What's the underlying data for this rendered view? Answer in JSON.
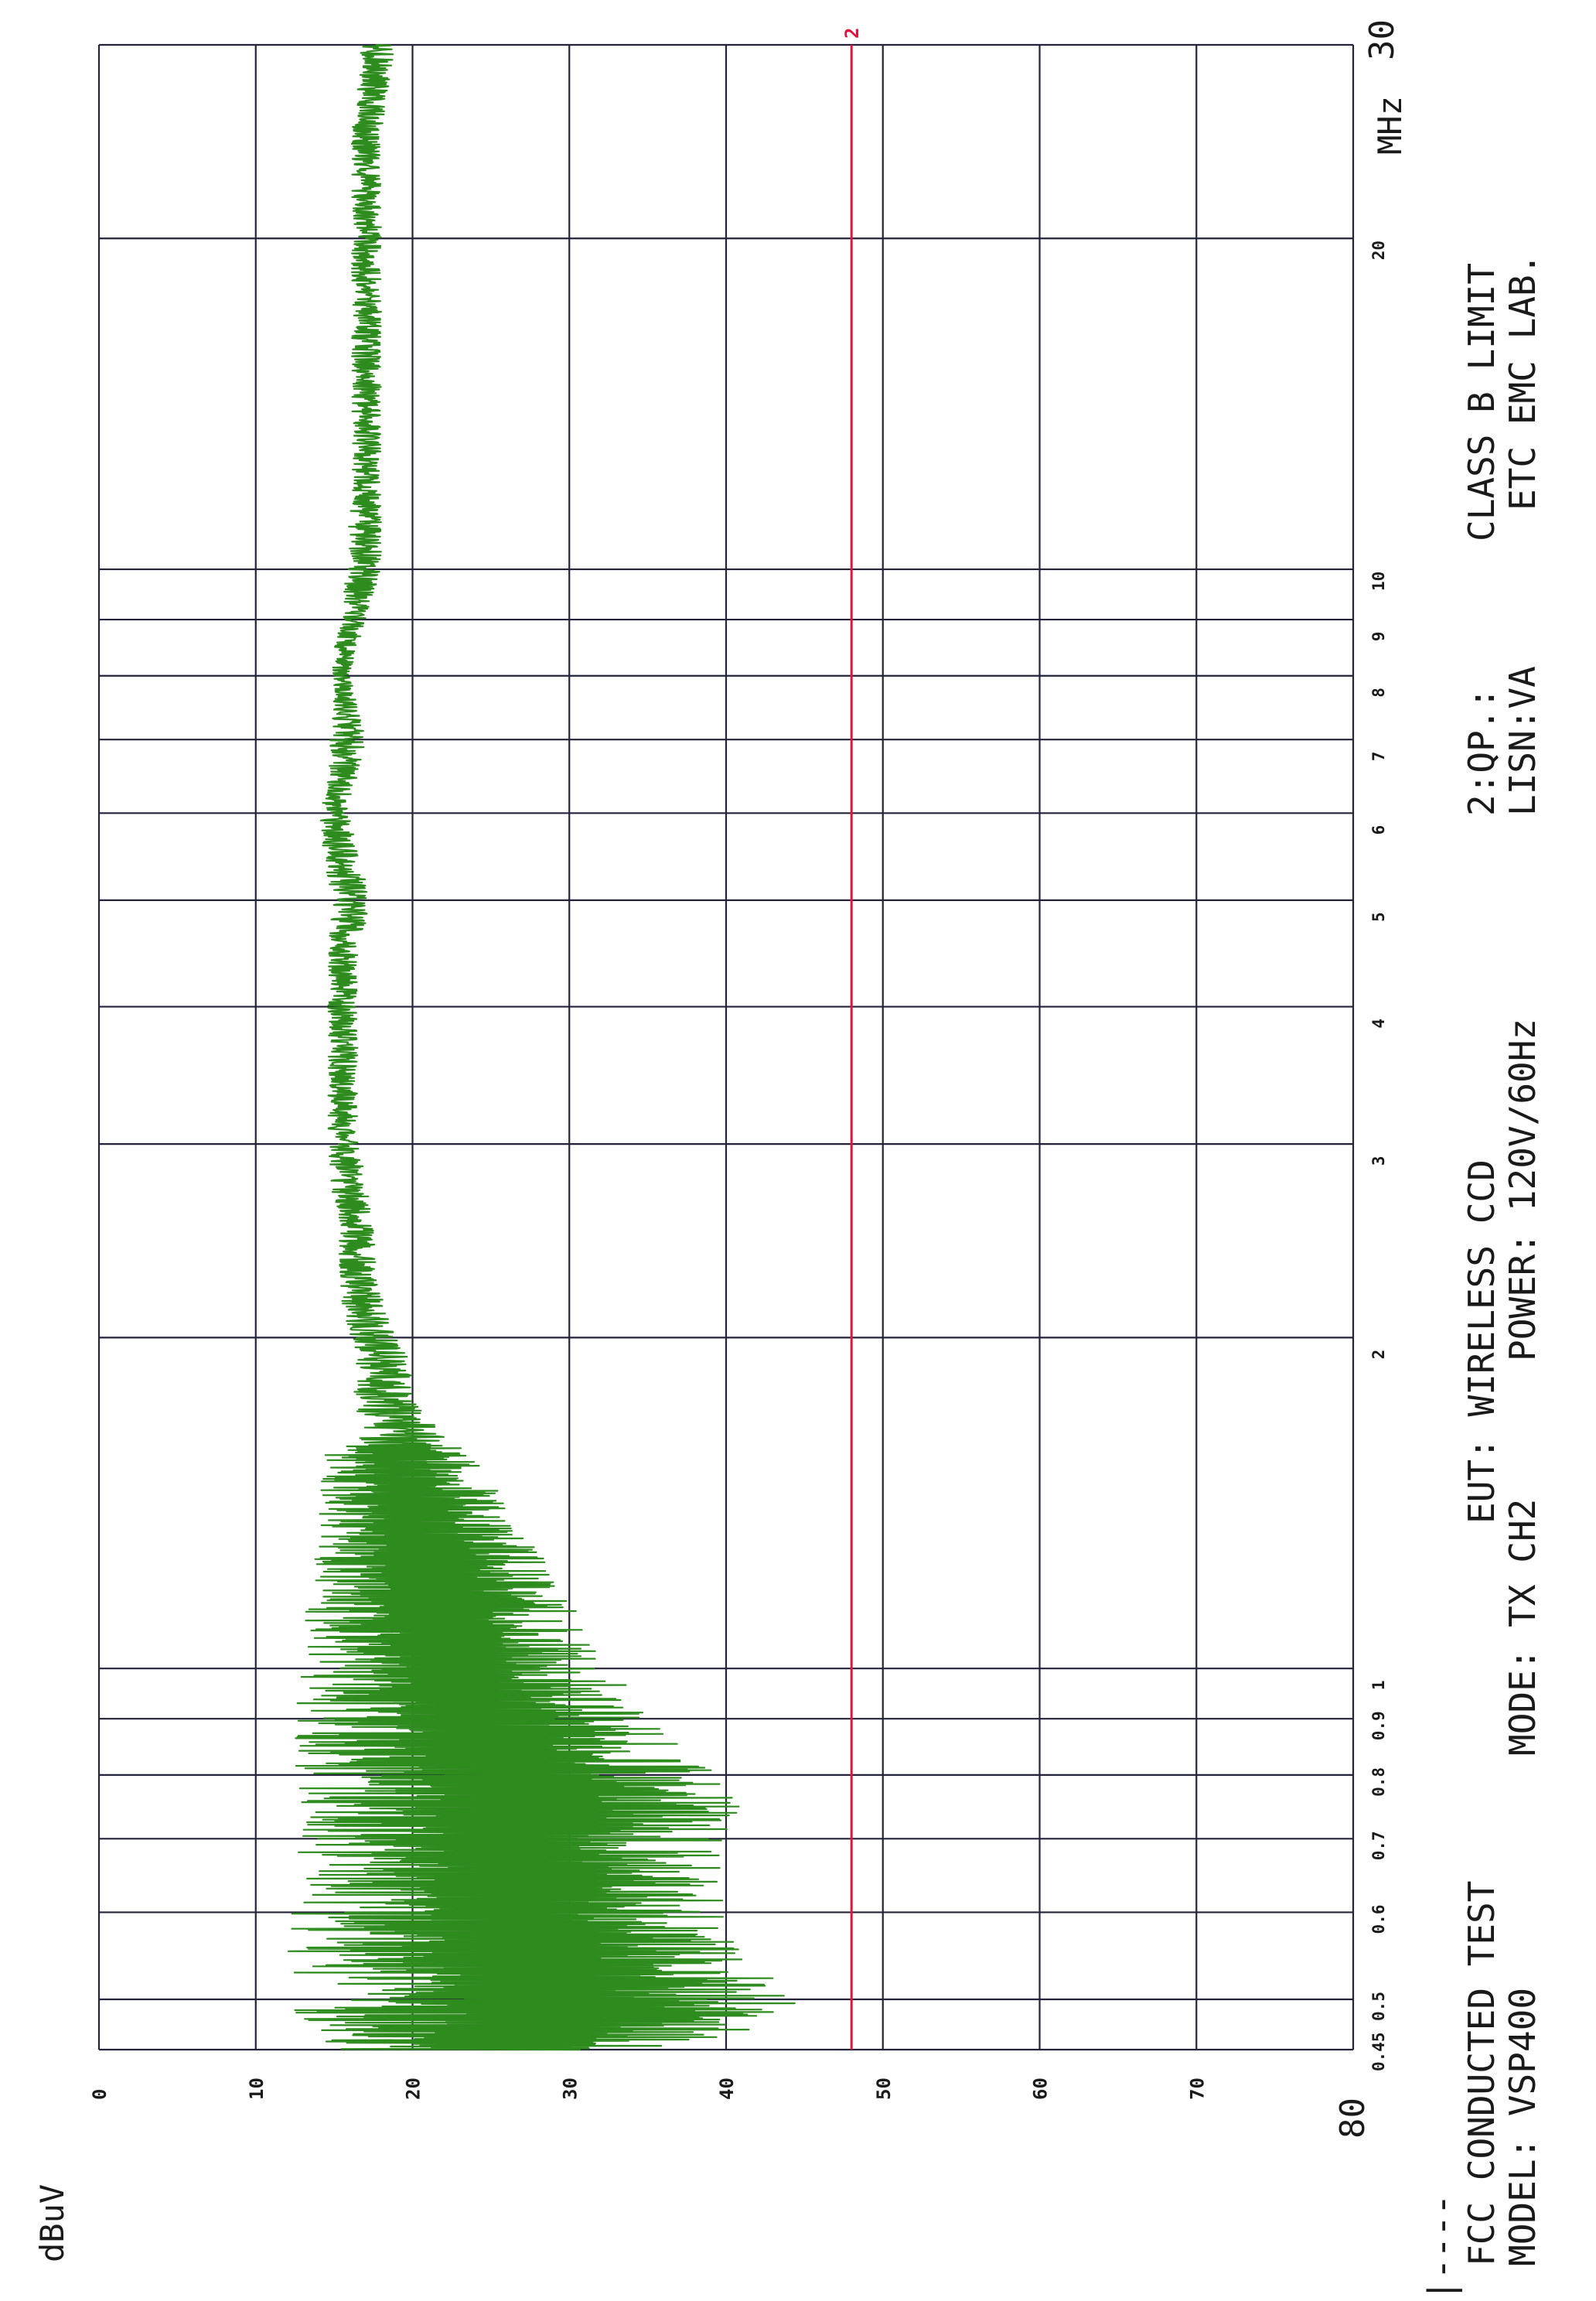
{
  "chart_data": {
    "type": "line",
    "title": "FCC CONDUCTED TEST",
    "ylabel": "dBuV",
    "xlabel": "MHz",
    "x_scale": "log",
    "xlim": [
      0.45,
      30
    ],
    "ylim": [
      0,
      80
    ],
    "grid": true,
    "y_ticks": [
      "0",
      "10",
      "20",
      "30",
      "40",
      "50",
      "60",
      "70",
      "80"
    ],
    "x_ticks": [
      {
        "value": 0.45,
        "label": "0.45"
      },
      {
        "value": 0.5,
        "label": "0.5"
      },
      {
        "value": 0.6,
        "label": "0.6"
      },
      {
        "value": 0.7,
        "label": "0.7"
      },
      {
        "value": 0.8,
        "label": "0.8"
      },
      {
        "value": 0.9,
        "label": "0.9"
      },
      {
        "value": 1,
        "label": "1"
      },
      {
        "value": 2,
        "label": "2"
      },
      {
        "value": 3,
        "label": "3"
      },
      {
        "value": 4,
        "label": "4"
      },
      {
        "value": 5,
        "label": "5"
      },
      {
        "value": 6,
        "label": "6"
      },
      {
        "value": 7,
        "label": "7"
      },
      {
        "value": 8,
        "label": "8"
      },
      {
        "value": 9,
        "label": "9"
      },
      {
        "value": 10,
        "label": "10"
      },
      {
        "value": 20,
        "label": "20"
      },
      {
        "value": 30,
        "label": "30"
      }
    ],
    "limit_line": {
      "label": "2",
      "y": 48,
      "color": "#e0143c"
    },
    "series": [
      {
        "color": "#2e8b1e",
        "x": [
          0.45,
          0.48,
          0.5,
          0.55,
          0.6,
          0.65,
          0.7,
          0.75,
          0.8,
          0.85,
          0.9,
          0.95,
          1.0,
          1.1,
          1.2,
          1.3,
          1.4,
          1.5,
          1.6,
          1.7,
          1.8,
          1.9,
          2.0,
          2.2,
          2.5,
          2.8,
          3.0,
          3.5,
          4.0,
          4.5,
          5.0,
          5.5,
          6.0,
          6.5,
          7.0,
          7.5,
          8.0,
          8.5,
          9.0,
          9.5,
          10,
          12,
          15,
          18,
          20,
          25,
          30
        ],
        "upper": [
          36,
          47,
          44,
          42,
          40,
          40,
          40,
          41,
          41,
          37,
          36,
          34,
          33,
          31,
          29,
          28,
          26,
          25,
          23,
          21,
          20,
          20,
          19,
          18,
          17.5,
          17,
          16.5,
          16.5,
          16.5,
          16.5,
          17.5,
          16.5,
          16,
          16.5,
          17,
          16.5,
          16,
          16.5,
          17,
          17.5,
          18,
          18,
          18,
          18,
          18,
          18,
          19
        ],
        "lower": [
          13,
          12,
          13,
          12,
          12,
          13,
          12.5,
          12.5,
          12.5,
          12.5,
          12.5,
          12.5,
          13,
          13,
          13.5,
          14,
          14,
          14,
          14.5,
          15,
          15,
          15,
          15,
          14.5,
          14.5,
          14,
          14,
          14,
          14,
          14,
          14,
          13.5,
          13.5,
          14,
          14,
          14.5,
          14.5,
          14.5,
          15,
          15,
          15,
          15.5,
          15.5,
          15.5,
          15.5,
          15.5,
          16
        ]
      }
    ]
  },
  "annotations": {
    "line1_left": "FCC CONDUCTED TEST",
    "line2_left": "MODEL: VSP400",
    "line1_eut": "EUT: WIRELESS CCD",
    "line2_mode": "MODE:  TX CH2",
    "line2_power": "POWER: 120V/60Hz",
    "line1_qp": "2:QP.:",
    "line2_lisn": "LISN:VA",
    "line1_class": "CLASS B LIMIT",
    "line2_lab": "ETC EMC LAB.",
    "legend_marker": "|----"
  }
}
